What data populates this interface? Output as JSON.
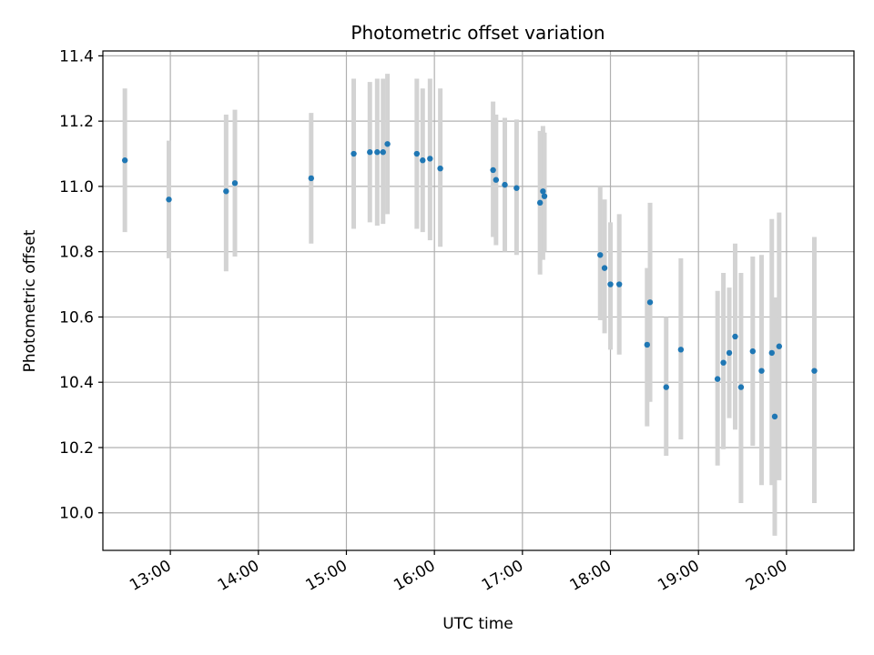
{
  "chart_data": {
    "type": "scatter",
    "title": "Photometric offset variation",
    "xlabel": "UTC time",
    "ylabel": "Photometric offset",
    "x_axis_type": "time",
    "xlim": [
      "12:14",
      "20:46"
    ],
    "ylim": [
      9.885,
      11.415
    ],
    "xticks": [
      "13:00",
      "14:00",
      "15:00",
      "16:00",
      "17:00",
      "18:00",
      "19:00",
      "20:00"
    ],
    "yticks": [
      10.0,
      10.2,
      10.4,
      10.6,
      10.8,
      11.0,
      11.2,
      11.4
    ],
    "ytick_labels": [
      "10.0",
      "10.2",
      "10.4",
      "10.6",
      "10.8",
      "11.0",
      "11.2",
      "11.4"
    ],
    "grid": true,
    "legend": "none",
    "series": [
      {
        "marker_color": "#1f77b4",
        "errorbar_color": "#d3d3d3",
        "points": [
          {
            "x": "12:29",
            "y": 11.08,
            "err_low": 10.86,
            "err_high": 11.3
          },
          {
            "x": "12:59",
            "y": 10.96,
            "err_low": 10.78,
            "err_high": 11.14
          },
          {
            "x": "13:38",
            "y": 10.985,
            "err_low": 10.74,
            "err_high": 11.22
          },
          {
            "x": "13:44",
            "y": 11.01,
            "err_low": 10.785,
            "err_high": 11.235
          },
          {
            "x": "14:36",
            "y": 11.025,
            "err_low": 10.825,
            "err_high": 11.225
          },
          {
            "x": "15:05",
            "y": 11.1,
            "err_low": 10.87,
            "err_high": 11.33
          },
          {
            "x": "15:16",
            "y": 11.105,
            "err_low": 10.89,
            "err_high": 11.32
          },
          {
            "x": "15:21",
            "y": 11.105,
            "err_low": 10.88,
            "err_high": 11.33
          },
          {
            "x": "15:25",
            "y": 11.105,
            "err_low": 10.885,
            "err_high": 11.33
          },
          {
            "x": "15:28",
            "y": 11.13,
            "err_low": 10.915,
            "err_high": 11.345
          },
          {
            "x": "15:48",
            "y": 11.1,
            "err_low": 10.87,
            "err_high": 11.33
          },
          {
            "x": "15:52",
            "y": 11.08,
            "err_low": 10.86,
            "err_high": 11.3
          },
          {
            "x": "15:57",
            "y": 11.085,
            "err_low": 10.835,
            "err_high": 11.33
          },
          {
            "x": "16:04",
            "y": 11.055,
            "err_low": 10.815,
            "err_high": 11.3
          },
          {
            "x": "16:40",
            "y": 11.05,
            "err_low": 10.845,
            "err_high": 11.26
          },
          {
            "x": "16:42",
            "y": 11.02,
            "err_low": 10.82,
            "err_high": 11.22
          },
          {
            "x": "16:48",
            "y": 11.005,
            "err_low": 10.8,
            "err_high": 11.21
          },
          {
            "x": "16:56",
            "y": 10.995,
            "err_low": 10.79,
            "err_high": 11.205
          },
          {
            "x": "17:12",
            "y": 10.95,
            "err_low": 10.73,
            "err_high": 11.17
          },
          {
            "x": "17:14",
            "y": 10.985,
            "err_low": 10.775,
            "err_high": 11.185
          },
          {
            "x": "17:15",
            "y": 10.97,
            "err_low": 10.8,
            "err_high": 11.165
          },
          {
            "x": "17:53",
            "y": 10.79,
            "err_low": 10.59,
            "err_high": 11.0
          },
          {
            "x": "17:56",
            "y": 10.75,
            "err_low": 10.55,
            "err_high": 10.96
          },
          {
            "x": "18:00",
            "y": 10.7,
            "err_low": 10.5,
            "err_high": 10.89
          },
          {
            "x": "18:06",
            "y": 10.7,
            "err_low": 10.485,
            "err_high": 10.915
          },
          {
            "x": "18:25",
            "y": 10.515,
            "err_low": 10.265,
            "err_high": 10.75
          },
          {
            "x": "18:27",
            "y": 10.645,
            "err_low": 10.34,
            "err_high": 10.95
          },
          {
            "x": "18:38",
            "y": 10.385,
            "err_low": 10.175,
            "err_high": 10.6
          },
          {
            "x": "18:48",
            "y": 10.5,
            "err_low": 10.225,
            "err_high": 10.78
          },
          {
            "x": "19:13",
            "y": 10.41,
            "err_low": 10.145,
            "err_high": 10.68
          },
          {
            "x": "19:17",
            "y": 10.46,
            "err_low": 10.195,
            "err_high": 10.735
          },
          {
            "x": "19:21",
            "y": 10.49,
            "err_low": 10.29,
            "err_high": 10.69
          },
          {
            "x": "19:25",
            "y": 10.54,
            "err_low": 10.255,
            "err_high": 10.825
          },
          {
            "x": "19:29",
            "y": 10.385,
            "err_low": 10.03,
            "err_high": 10.735
          },
          {
            "x": "19:37",
            "y": 10.495,
            "err_low": 10.205,
            "err_high": 10.785
          },
          {
            "x": "19:43",
            "y": 10.435,
            "err_low": 10.085,
            "err_high": 10.79
          },
          {
            "x": "19:50",
            "y": 10.49,
            "err_low": 10.085,
            "err_high": 10.9
          },
          {
            "x": "19:52",
            "y": 10.295,
            "err_low": 9.93,
            "err_high": 10.66
          },
          {
            "x": "19:55",
            "y": 10.51,
            "err_low": 10.1,
            "err_high": 10.92
          },
          {
            "x": "20:19",
            "y": 10.435,
            "err_low": 10.03,
            "err_high": 10.845
          }
        ]
      }
    ]
  }
}
